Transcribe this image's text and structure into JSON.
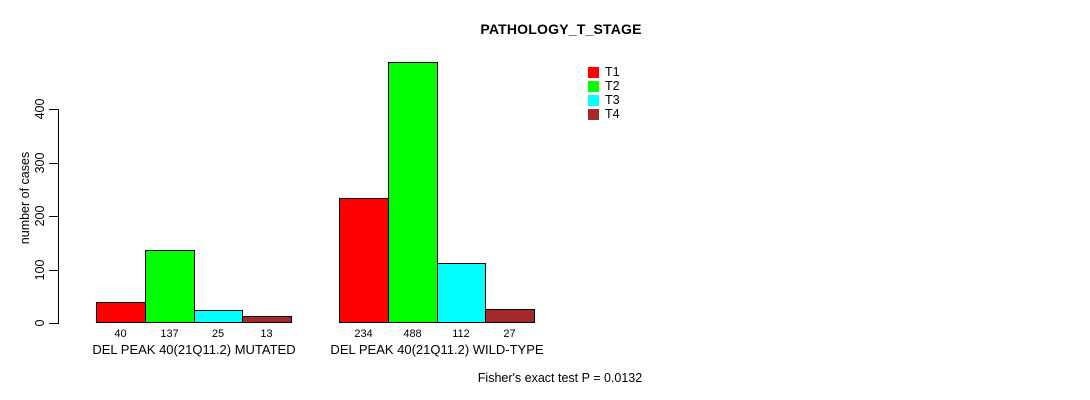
{
  "chart_data": {
    "type": "bar",
    "title": "PATHOLOGY_T_STAGE",
    "ylabel": "number of cases",
    "xlabel": "",
    "footer": "Fisher's exact test P = 0.0132",
    "categories": [
      "DEL PEAK 40(21Q11.2) MUTATED",
      "DEL PEAK 40(21Q11.2) WILD-TYPE"
    ],
    "series": [
      {
        "name": "T1",
        "color": "#ff0000",
        "values": [
          40,
          234
        ]
      },
      {
        "name": "T2",
        "color": "#00ff00",
        "values": [
          137,
          488
        ]
      },
      {
        "name": "T3",
        "color": "#00ffff",
        "values": [
          25,
          112
        ]
      },
      {
        "name": "T4",
        "color": "#a52a2a",
        "values": [
          13,
          27
        ]
      }
    ],
    "bar_value_labels": [
      [
        40,
        137,
        25,
        13
      ],
      [
        234,
        488,
        112,
        27
      ]
    ],
    "yticks": [
      0,
      100,
      200,
      300,
      400
    ],
    "ylim": [
      0,
      488
    ],
    "grid": false,
    "legend_position": "top-right",
    "bar_border_color": "#000000",
    "background_color": "#ffffff"
  }
}
